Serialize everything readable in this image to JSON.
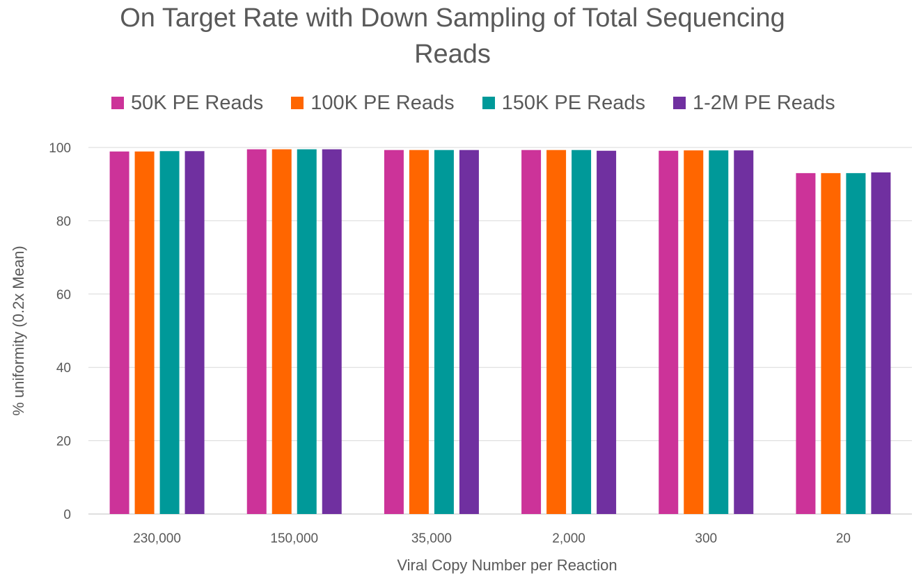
{
  "chart_data": {
    "type": "bar",
    "title_line1": "On Target Rate with Down Sampling of Total Sequencing",
    "title_line2": "Reads",
    "xlabel": "Viral Copy Number per Reaction",
    "ylabel": "% uniformity (0.2x Mean)",
    "categories": [
      "230,000",
      "150,000",
      "35,000",
      "2,000",
      "300",
      "20"
    ],
    "ylim": [
      0,
      100
    ],
    "yticks": [
      0,
      20,
      40,
      60,
      80,
      100
    ],
    "grid": true,
    "legend_position": "top",
    "series": [
      {
        "name": "50K PE Reads",
        "color": "#CC3399",
        "values": [
          98.9,
          99.5,
          99.3,
          99.3,
          99.1,
          93.0
        ]
      },
      {
        "name": "100K PE Reads",
        "color": "#FF6600",
        "values": [
          98.9,
          99.5,
          99.3,
          99.3,
          99.2,
          93.0
        ]
      },
      {
        "name": "150K PE Reads",
        "color": "#009999",
        "values": [
          99.0,
          99.5,
          99.3,
          99.3,
          99.2,
          93.0
        ]
      },
      {
        "name": "1-2M PE Reads",
        "color": "#7030A0",
        "values": [
          99.0,
          99.5,
          99.3,
          99.1,
          99.2,
          93.2
        ]
      }
    ]
  }
}
